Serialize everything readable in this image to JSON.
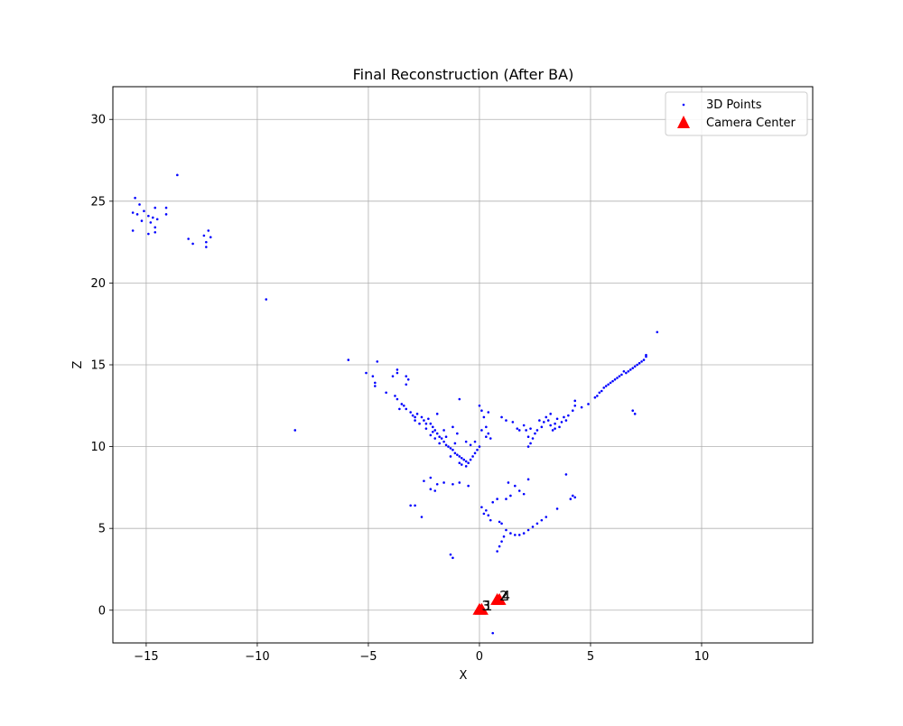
{
  "chart_data": {
    "type": "scatter",
    "title": "Final Reconstruction (After BA)",
    "xlabel": "X",
    "ylabel": "Z",
    "xlim": [
      -16.5,
      15
    ],
    "ylim": [
      -2,
      32
    ],
    "xticks": [
      -15,
      -10,
      -5,
      0,
      5,
      10
    ],
    "yticks": [
      0,
      5,
      10,
      15,
      20,
      25,
      30
    ],
    "grid": true,
    "legend_position": "top-right",
    "series": [
      {
        "name": "3D Points",
        "color": "#0000ff",
        "marker": "dot",
        "points": [
          [
            -15.5,
            25.2
          ],
          [
            -15.6,
            24.3
          ],
          [
            -15.3,
            24.8
          ],
          [
            -15.1,
            24.4
          ],
          [
            -14.9,
            24.1
          ],
          [
            -14.7,
            24.0
          ],
          [
            -14.6,
            24.6
          ],
          [
            -14.5,
            23.9
          ],
          [
            -14.8,
            23.7
          ],
          [
            -14.6,
            23.4
          ],
          [
            -14.9,
            23.0
          ],
          [
            -14.6,
            23.1
          ],
          [
            -15.2,
            23.8
          ],
          [
            -15.4,
            24.2
          ],
          [
            -15.6,
            23.2
          ],
          [
            -14.1,
            24.6
          ],
          [
            -14.1,
            24.2
          ],
          [
            -13.6,
            26.6
          ],
          [
            -13.1,
            22.7
          ],
          [
            -12.9,
            22.4
          ],
          [
            -12.4,
            22.9
          ],
          [
            -12.3,
            22.5
          ],
          [
            -12.3,
            22.2
          ],
          [
            -12.2,
            23.2
          ],
          [
            -12.1,
            22.8
          ],
          [
            -9.6,
            19.0
          ],
          [
            -8.3,
            11.0
          ],
          [
            -5.9,
            15.3
          ],
          [
            -5.1,
            14.5
          ],
          [
            -4.8,
            14.3
          ],
          [
            -4.6,
            15.2
          ],
          [
            -4.7,
            13.9
          ],
          [
            -4.7,
            13.7
          ],
          [
            -4.2,
            13.3
          ],
          [
            -3.9,
            14.3
          ],
          [
            -3.7,
            14.7
          ],
          [
            -3.7,
            14.5
          ],
          [
            -3.3,
            14.3
          ],
          [
            -3.2,
            14.1
          ],
          [
            -3.3,
            13.8
          ],
          [
            -3.8,
            13.1
          ],
          [
            -3.7,
            12.9
          ],
          [
            -3.5,
            12.6
          ],
          [
            -3.4,
            12.5
          ],
          [
            -3.6,
            12.3
          ],
          [
            -3.3,
            12.3
          ],
          [
            -3.1,
            12.1
          ],
          [
            -3.0,
            11.9
          ],
          [
            -2.9,
            11.8
          ],
          [
            -2.8,
            12.0
          ],
          [
            -2.6,
            11.8
          ],
          [
            -2.5,
            11.6
          ],
          [
            -2.4,
            11.4
          ],
          [
            -2.3,
            11.7
          ],
          [
            -2.2,
            11.4
          ],
          [
            -2.1,
            11.2
          ],
          [
            -2.0,
            11.0
          ],
          [
            -1.9,
            10.8
          ],
          [
            -1.8,
            10.6
          ],
          [
            -1.7,
            10.5
          ],
          [
            -1.6,
            10.3
          ],
          [
            -1.5,
            10.1
          ],
          [
            -1.4,
            10.0
          ],
          [
            -1.3,
            9.9
          ],
          [
            -1.2,
            9.8
          ],
          [
            -1.1,
            9.6
          ],
          [
            -1.0,
            9.5
          ],
          [
            -0.9,
            9.4
          ],
          [
            -0.8,
            9.3
          ],
          [
            -0.7,
            9.2
          ],
          [
            -0.6,
            9.1
          ],
          [
            -0.5,
            9.0
          ],
          [
            -0.8,
            8.9
          ],
          [
            -0.6,
            8.8
          ],
          [
            -0.4,
            9.2
          ],
          [
            -0.3,
            9.4
          ],
          [
            -0.2,
            9.6
          ],
          [
            -0.1,
            9.8
          ],
          [
            0.0,
            10.0
          ],
          [
            -1.1,
            10.2
          ],
          [
            -1.5,
            10.6
          ],
          [
            -2.1,
            10.9
          ],
          [
            -2.4,
            11.1
          ],
          [
            -2.7,
            11.4
          ],
          [
            -2.9,
            11.6
          ],
          [
            -1.9,
            12.0
          ],
          [
            -1.2,
            11.2
          ],
          [
            -1.0,
            10.8
          ],
          [
            -0.6,
            10.3
          ],
          [
            -0.4,
            10.1
          ],
          [
            -1.8,
            10.2
          ],
          [
            -1.3,
            9.4
          ],
          [
            -0.9,
            9.0
          ],
          [
            -2.0,
            10.5
          ],
          [
            -2.2,
            10.7
          ],
          [
            -1.6,
            11.0
          ],
          [
            0.0,
            12.5
          ],
          [
            0.1,
            12.2
          ],
          [
            0.2,
            11.8
          ],
          [
            0.4,
            12.1
          ],
          [
            0.3,
            11.2
          ],
          [
            0.4,
            10.8
          ],
          [
            0.5,
            10.5
          ],
          [
            0.3,
            10.6
          ],
          [
            -0.2,
            10.3
          ],
          [
            0.1,
            11.0
          ],
          [
            -0.9,
            12.9
          ],
          [
            1.0,
            11.8
          ],
          [
            1.2,
            11.6
          ],
          [
            1.5,
            11.5
          ],
          [
            1.7,
            11.1
          ],
          [
            2.0,
            11.3
          ],
          [
            2.1,
            11.0
          ],
          [
            2.2,
            10.6
          ],
          [
            2.3,
            10.2
          ],
          [
            2.4,
            10.5
          ],
          [
            2.5,
            10.8
          ],
          [
            2.6,
            11.0
          ],
          [
            2.8,
            11.2
          ],
          [
            2.9,
            11.5
          ],
          [
            3.0,
            11.8
          ],
          [
            3.1,
            11.6
          ],
          [
            3.2,
            11.3
          ],
          [
            3.3,
            11.0
          ],
          [
            3.4,
            11.4
          ],
          [
            3.5,
            11.7
          ],
          [
            3.6,
            11.2
          ],
          [
            3.7,
            11.5
          ],
          [
            3.8,
            11.8
          ],
          [
            3.9,
            11.6
          ],
          [
            4.0,
            11.9
          ],
          [
            4.2,
            12.2
          ],
          [
            4.3,
            12.5
          ],
          [
            4.3,
            12.8
          ],
          [
            4.6,
            12.4
          ],
          [
            4.9,
            12.6
          ],
          [
            2.7,
            11.6
          ],
          [
            3.2,
            12.0
          ],
          [
            3.4,
            11.1
          ],
          [
            2.3,
            11.1
          ],
          [
            2.2,
            10.0
          ],
          [
            1.8,
            11.0
          ],
          [
            5.2,
            13.0
          ],
          [
            5.4,
            13.3
          ],
          [
            5.6,
            13.6
          ],
          [
            5.8,
            13.8
          ],
          [
            6.0,
            14.0
          ],
          [
            6.2,
            14.2
          ],
          [
            6.4,
            14.4
          ],
          [
            6.6,
            14.5
          ],
          [
            6.8,
            14.7
          ],
          [
            7.0,
            14.9
          ],
          [
            7.2,
            15.1
          ],
          [
            7.4,
            15.3
          ],
          [
            7.5,
            15.5
          ],
          [
            5.3,
            13.1
          ],
          [
            5.5,
            13.4
          ],
          [
            5.7,
            13.7
          ],
          [
            5.9,
            13.9
          ],
          [
            6.1,
            14.1
          ],
          [
            6.3,
            14.3
          ],
          [
            6.5,
            14.6
          ],
          [
            6.7,
            14.6
          ],
          [
            6.9,
            14.8
          ],
          [
            7.1,
            15.0
          ],
          [
            7.3,
            15.2
          ],
          [
            7.5,
            15.6
          ],
          [
            6.9,
            12.2
          ],
          [
            7.0,
            12.0
          ],
          [
            8.0,
            17.0
          ],
          [
            -2.5,
            7.9
          ],
          [
            -2.2,
            8.1
          ],
          [
            -1.9,
            7.7
          ],
          [
            -1.6,
            7.8
          ],
          [
            -1.2,
            7.7
          ],
          [
            -0.9,
            7.8
          ],
          [
            -0.5,
            7.6
          ],
          [
            -2.2,
            7.4
          ],
          [
            -2.0,
            7.3
          ],
          [
            -2.9,
            6.4
          ],
          [
            -3.1,
            6.4
          ],
          [
            -2.6,
            5.7
          ],
          [
            -1.3,
            3.4
          ],
          [
            -1.2,
            3.2
          ],
          [
            0.1,
            6.3
          ],
          [
            0.2,
            5.9
          ],
          [
            0.4,
            5.8
          ],
          [
            0.5,
            5.5
          ],
          [
            0.6,
            6.6
          ],
          [
            0.8,
            6.8
          ],
          [
            0.9,
            5.4
          ],
          [
            1.0,
            5.3
          ],
          [
            1.2,
            4.9
          ],
          [
            1.4,
            4.7
          ],
          [
            1.6,
            4.6
          ],
          [
            1.8,
            4.6
          ],
          [
            2.0,
            4.7
          ],
          [
            2.2,
            4.9
          ],
          [
            2.4,
            5.1
          ],
          [
            2.6,
            5.3
          ],
          [
            2.8,
            5.5
          ],
          [
            3.0,
            5.7
          ],
          [
            1.2,
            6.8
          ],
          [
            1.4,
            7.0
          ],
          [
            1.6,
            7.6
          ],
          [
            1.8,
            7.3
          ],
          [
            2.2,
            8.0
          ],
          [
            2.0,
            7.1
          ],
          [
            3.5,
            6.2
          ],
          [
            3.9,
            8.3
          ],
          [
            4.1,
            6.8
          ],
          [
            4.2,
            7.0
          ],
          [
            4.3,
            6.9
          ],
          [
            0.8,
            3.6
          ],
          [
            1.0,
            4.2
          ],
          [
            1.1,
            4.5
          ],
          [
            0.9,
            3.9
          ],
          [
            0.6,
            -1.4
          ],
          [
            0.3,
            6.1
          ],
          [
            1.3,
            7.8
          ]
        ]
      },
      {
        "name": "Camera Center",
        "color": "#ff0000",
        "marker": "triangle",
        "points": [
          [
            0.0,
            0.0
          ],
          [
            0.1,
            0.0
          ],
          [
            0.8,
            0.6
          ],
          [
            0.9,
            0.6
          ]
        ]
      }
    ],
    "annotations": [
      {
        "text": "3",
        "x": 0.1,
        "y": 0.0
      },
      {
        "text": "1",
        "x": 0.2,
        "y": 0.0
      },
      {
        "text": "2",
        "x": 0.9,
        "y": 0.6
      },
      {
        "text": "4",
        "x": 1.0,
        "y": 0.6
      }
    ]
  }
}
